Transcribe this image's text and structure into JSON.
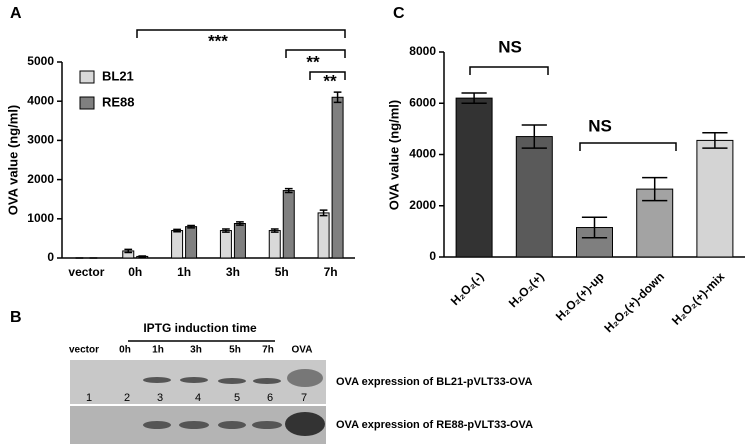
{
  "panel_labels": [
    "A",
    "B",
    "C"
  ],
  "chart_data": [
    {
      "type": "bar",
      "ylabel": "OVA value (ng/ml)",
      "categories": [
        "vector",
        "0h",
        "1h",
        "3h",
        "5h",
        "7h"
      ],
      "series": [
        {
          "name": "BL21",
          "color": "#d9d9d9",
          "values": [
            0,
            180,
            700,
            700,
            700,
            1150
          ],
          "errors": [
            0,
            40,
            30,
            40,
            40,
            70
          ]
        },
        {
          "name": "RE88",
          "color": "#808080",
          "values": [
            0,
            40,
            800,
            880,
            1720,
            4100
          ],
          "errors": [
            0,
            10,
            30,
            40,
            50,
            130
          ]
        }
      ],
      "ylim": [
        0,
        5000
      ],
      "yticks": [
        0,
        1000,
        2000,
        3000,
        4000,
        5000
      ],
      "legend": "upper left",
      "annotations": [
        "***",
        "**",
        "**"
      ]
    },
    {
      "type": "bar",
      "ylabel": "OVA value (ng/ml)",
      "categories": [
        "H₂O₂(-)",
        "H₂O₂(+)",
        "H₂O₂(+)-up",
        "H₂O₂(+)-down",
        "H₂O₂(+)-mix"
      ],
      "series": [
        {
          "colors": [
            "#333333",
            "#5a5a5a",
            "#7f7f7f",
            "#a3a3a3",
            "#d4d4d4"
          ],
          "values": [
            6200,
            4700,
            1150,
            2650,
            4550
          ],
          "errors": [
            200,
            450,
            400,
            450,
            300
          ]
        }
      ],
      "ylim": [
        0,
        8000
      ],
      "yticks": [
        0,
        2000,
        4000,
        6000,
        8000
      ],
      "annotations": [
        "NS",
        "NS"
      ]
    }
  ],
  "blot": {
    "header": "IPTG induction time",
    "lanes": [
      "vector",
      "0h",
      "1h",
      "3h",
      "5h",
      "7h",
      "OVA"
    ],
    "lane_numbers": [
      "1",
      "2",
      "3",
      "4",
      "5",
      "6",
      "7"
    ],
    "rows": [
      "OVA expression of BL21-pVLT33-OVA",
      "OVA expression of RE88-pVLT33-OVA"
    ]
  }
}
